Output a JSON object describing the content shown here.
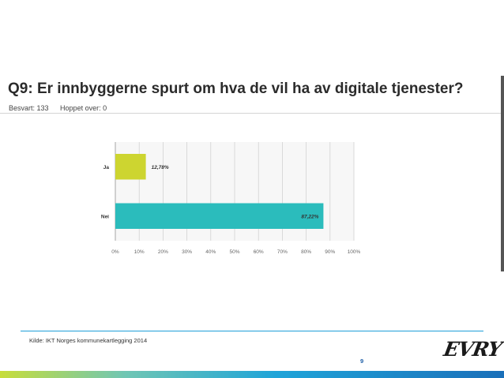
{
  "slide": {
    "title": "Q9: Er innbyggerne spurt om hva de vil ha av digitale tjenester?",
    "answered": "Besvart: 133",
    "skipped": "Hoppet over: 0",
    "source": "Kilde: IKT Norges kommunekartlegging 2014",
    "page_number": "9",
    "logo_text": "EVRY",
    "colors": {
      "accent_blue": "#1e9ed9",
      "bar_ja": "#cdd530",
      "bar_nei": "#2bbcbc"
    }
  },
  "chart_data": {
    "type": "bar",
    "orientation": "horizontal",
    "categories": [
      "Ja",
      "Nei"
    ],
    "values": [
      12.78,
      87.22
    ],
    "value_labels": [
      "12,78%",
      "87,22%"
    ],
    "bar_colors": [
      "#cdd530",
      "#2bbcbc"
    ],
    "xlim": [
      0,
      100
    ],
    "x_ticks": [
      "0%",
      "10%",
      "20%",
      "30%",
      "40%",
      "50%",
      "60%",
      "70%",
      "80%",
      "90%",
      "100%"
    ],
    "grid": true,
    "title": "",
    "xlabel": "",
    "ylabel": ""
  }
}
